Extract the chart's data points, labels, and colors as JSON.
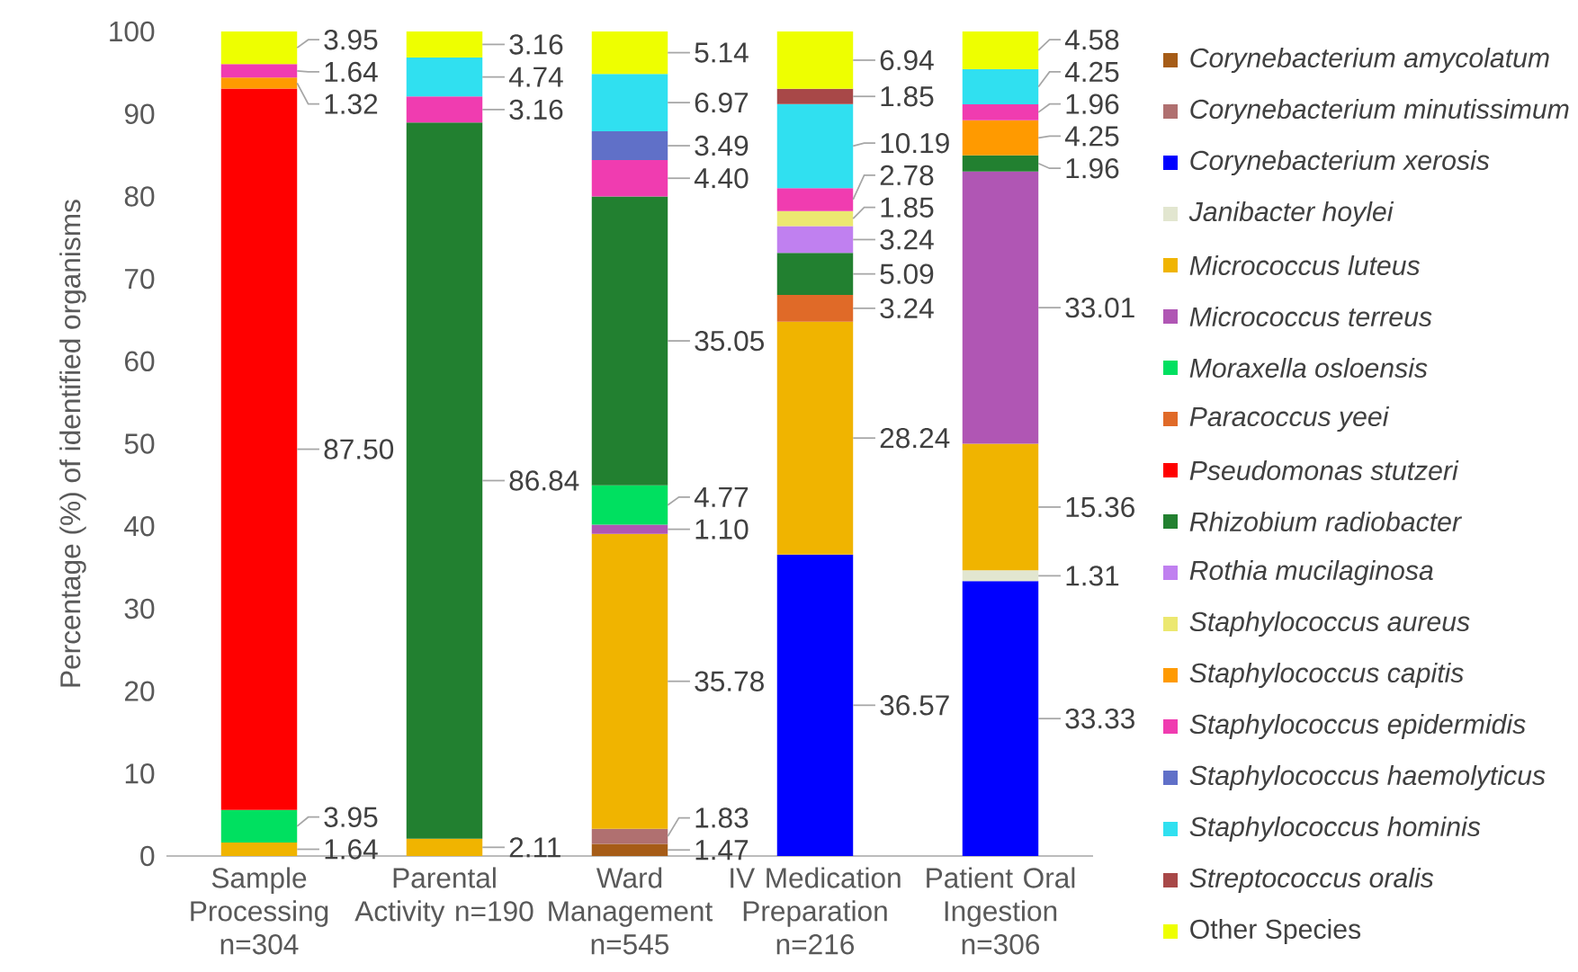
{
  "chart_data": {
    "type": "bar",
    "stacked": true,
    "ylabel": "Percentage (%) of identified organisms",
    "categories": [
      "Sample Processing n=304",
      "Parental Activity n=190",
      "Ward Management n=545",
      "IV Medication Preparation n=216",
      "Patient Oral Ingestion n=306"
    ],
    "ylim": [
      0,
      100
    ],
    "yticks": [
      0,
      10,
      20,
      30,
      40,
      50,
      60,
      70,
      80,
      90,
      100
    ],
    "legend": "right",
    "series": [
      {
        "name": "*Corynebacterium amycolatum*",
        "color": "#a65c17",
        "values": [
          null,
          null,
          1.47,
          null,
          null
        ],
        "value_labels": [
          null,
          null,
          "1.47",
          null,
          null
        ]
      },
      {
        "name": "*Corynebacterium minutissimum*",
        "color": "#b07070",
        "values": [
          null,
          null,
          1.83,
          null,
          null
        ],
        "value_labels": [
          null,
          null,
          "1.83",
          null,
          null
        ]
      },
      {
        "name": "*Corynebacterium xerosis*",
        "color": "#0000ff",
        "values": [
          null,
          null,
          null,
          36.57,
          33.33
        ],
        "value_labels": [
          null,
          null,
          null,
          "36.57",
          "33.33"
        ]
      },
      {
        "name": "*Janibacter hoylei*",
        "color": "#e2e6d0",
        "values": [
          null,
          null,
          null,
          null,
          1.31
        ],
        "value_labels": [
          null,
          null,
          null,
          null,
          "1.31"
        ]
      },
      {
        "name": "*Micrococcus luteus*",
        "color": "#f0b400",
        "values": [
          1.64,
          2.11,
          35.78,
          28.24,
          15.36
        ],
        "value_labels": [
          "1.64",
          "2.11",
          "35.78",
          "28.24",
          "15.36"
        ]
      },
      {
        "name": "*Micrococcus terreus*",
        "color": "#b056b4",
        "values": [
          null,
          null,
          1.1,
          null,
          33.01
        ],
        "value_labels": [
          null,
          null,
          "1.10",
          null,
          "33.01"
        ]
      },
      {
        "name": "*Moraxella osloensis*",
        "color": "#00e060",
        "values": [
          3.95,
          null,
          4.77,
          null,
          null
        ],
        "value_labels": [
          "3.95",
          null,
          "4.77",
          null,
          null
        ]
      },
      {
        "name": "*Paracoccus yeei*",
        "color": "#e06a28",
        "values": [
          null,
          null,
          null,
          3.24,
          null
        ],
        "value_labels": [
          null,
          null,
          null,
          "3.24",
          null
        ]
      },
      {
        "name": "*Pseudomonas stutzeri*",
        "color": "#ff0000",
        "values": [
          87.5,
          null,
          null,
          null,
          null
        ],
        "value_labels": [
          "87.50",
          null,
          null,
          null,
          null
        ]
      },
      {
        "name": "*Rhizobium radiobacter*",
        "color": "#228030",
        "values": [
          null,
          86.84,
          35.05,
          5.09,
          1.96
        ],
        "value_labels": [
          null,
          "86.84",
          "35.05",
          "5.09",
          "1.96"
        ]
      },
      {
        "name": "*Rothia mucilaginosa*",
        "color": "#c080f0",
        "values": [
          null,
          null,
          null,
          3.24,
          null
        ],
        "value_labels": [
          null,
          null,
          null,
          "3.24",
          null
        ]
      },
      {
        "name": "*Staphylococcus aureus*",
        "color": "#ece870",
        "values": [
          null,
          null,
          null,
          1.85,
          null
        ],
        "value_labels": [
          null,
          null,
          null,
          "1.85",
          null
        ]
      },
      {
        "name": "*Staphylococcus capitis*",
        "color": "#ff9a00",
        "values": [
          1.32,
          null,
          null,
          null,
          4.25
        ],
        "value_labels": [
          "1.32",
          null,
          null,
          null,
          "4.25"
        ]
      },
      {
        "name": "*Staphylococcus epidermidis*",
        "color": "#f03cb0",
        "values": [
          1.64,
          3.16,
          4.4,
          2.78,
          1.96
        ],
        "value_labels": [
          "1.64",
          "3.16",
          "4.40",
          "2.78",
          "1.96"
        ]
      },
      {
        "name": "*Staphylococcus haemolyticus*",
        "color": "#6070c8",
        "values": [
          null,
          null,
          3.49,
          null,
          null
        ],
        "value_labels": [
          null,
          null,
          "3.49",
          null,
          null
        ]
      },
      {
        "name": "*Staphylococcus hominis*",
        "color": "#30e0f0",
        "values": [
          null,
          4.74,
          6.97,
          10.19,
          4.25
        ],
        "value_labels": [
          null,
          "4.74",
          "6.97",
          "10.19",
          "4.25"
        ]
      },
      {
        "name": "*Streptococcus oralis*",
        "color": "#a84848",
        "values": [
          null,
          null,
          null,
          1.85,
          null
        ],
        "value_labels": [
          null,
          null,
          null,
          "1.85",
          null
        ]
      },
      {
        "name": "Other Species",
        "color": "#eeff00",
        "values": [
          3.95,
          3.16,
          5.14,
          6.94,
          4.58
        ],
        "value_labels": [
          "3.95",
          "3.16",
          "5.14",
          "6.94",
          "4.58"
        ]
      }
    ]
  }
}
